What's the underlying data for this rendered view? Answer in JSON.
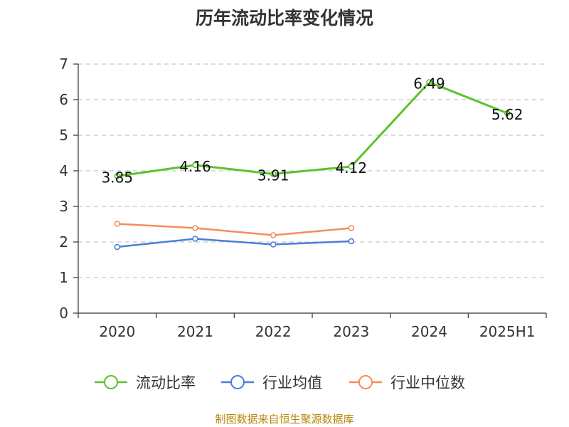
{
  "chart_data": {
    "type": "line",
    "title": "历年流动比率变化情况",
    "categories": [
      "2020",
      "2021",
      "2022",
      "2023",
      "2024",
      "2025H1"
    ],
    "ylim": [
      0,
      7
    ],
    "yticks": [
      0,
      1,
      2,
      3,
      4,
      5,
      6,
      7
    ],
    "grid": true,
    "legend_position": "bottom",
    "series": [
      {
        "name": "流动比率",
        "color": "#5cc22e",
        "values": [
          3.85,
          4.16,
          3.91,
          4.12,
          6.49,
          5.62
        ],
        "value_labels": [
          "3.85",
          "4.16",
          "3.91",
          "4.12",
          "6.49",
          "5.62"
        ]
      },
      {
        "name": "行业均值",
        "color": "#4a7fd6",
        "values": [
          1.86,
          2.09,
          1.93,
          2.02,
          null,
          null
        ]
      },
      {
        "name": "行业中位数",
        "color": "#f58d5a",
        "values": [
          2.51,
          2.39,
          2.19,
          2.39,
          null,
          null
        ]
      }
    ]
  },
  "source_note": "制图数据来自恒生聚源数据库"
}
